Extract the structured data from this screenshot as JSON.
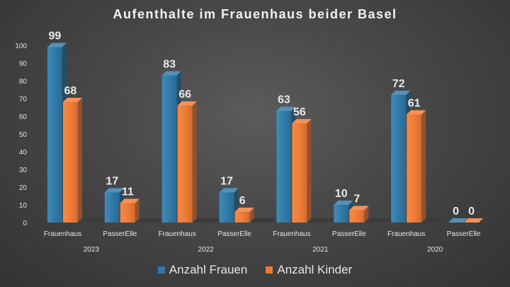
{
  "chart_data": {
    "type": "bar",
    "title": "Aufenthalte im Frauenhaus beider Basel",
    "xlabel": "",
    "ylabel": "",
    "ylim": [
      0,
      100
    ],
    "yticks": [
      0,
      10,
      20,
      30,
      40,
      50,
      60,
      70,
      80,
      90,
      100
    ],
    "groups": [
      {
        "year": "2023",
        "categories": [
          "Frauenhaus",
          "PasserElle"
        ]
      },
      {
        "year": "2022",
        "categories": [
          "Frauenhaus",
          "PasserElle"
        ]
      },
      {
        "year": "2021",
        "categories": [
          "Frauenhaus",
          "PasserElle"
        ]
      },
      {
        "year": "2020",
        "categories": [
          "Frauenhaus",
          "PasserElle"
        ]
      }
    ],
    "categories": [
      "Frauenhaus",
      "PasserElle",
      "Frauenhaus",
      "PasserElle",
      "Frauenhaus",
      "PasserElle",
      "Frauenhaus",
      "PasserElle"
    ],
    "series": [
      {
        "name": "Anzahl Frauen",
        "color": "#2e79a8",
        "values": [
          99,
          17,
          83,
          17,
          63,
          10,
          72,
          0
        ]
      },
      {
        "name": "Anzahl Kinder",
        "color": "#ef7a34",
        "values": [
          68,
          11,
          66,
          6,
          56,
          7,
          61,
          0
        ]
      }
    ],
    "grid": false,
    "legend_position": "bottom",
    "style": "3d"
  }
}
